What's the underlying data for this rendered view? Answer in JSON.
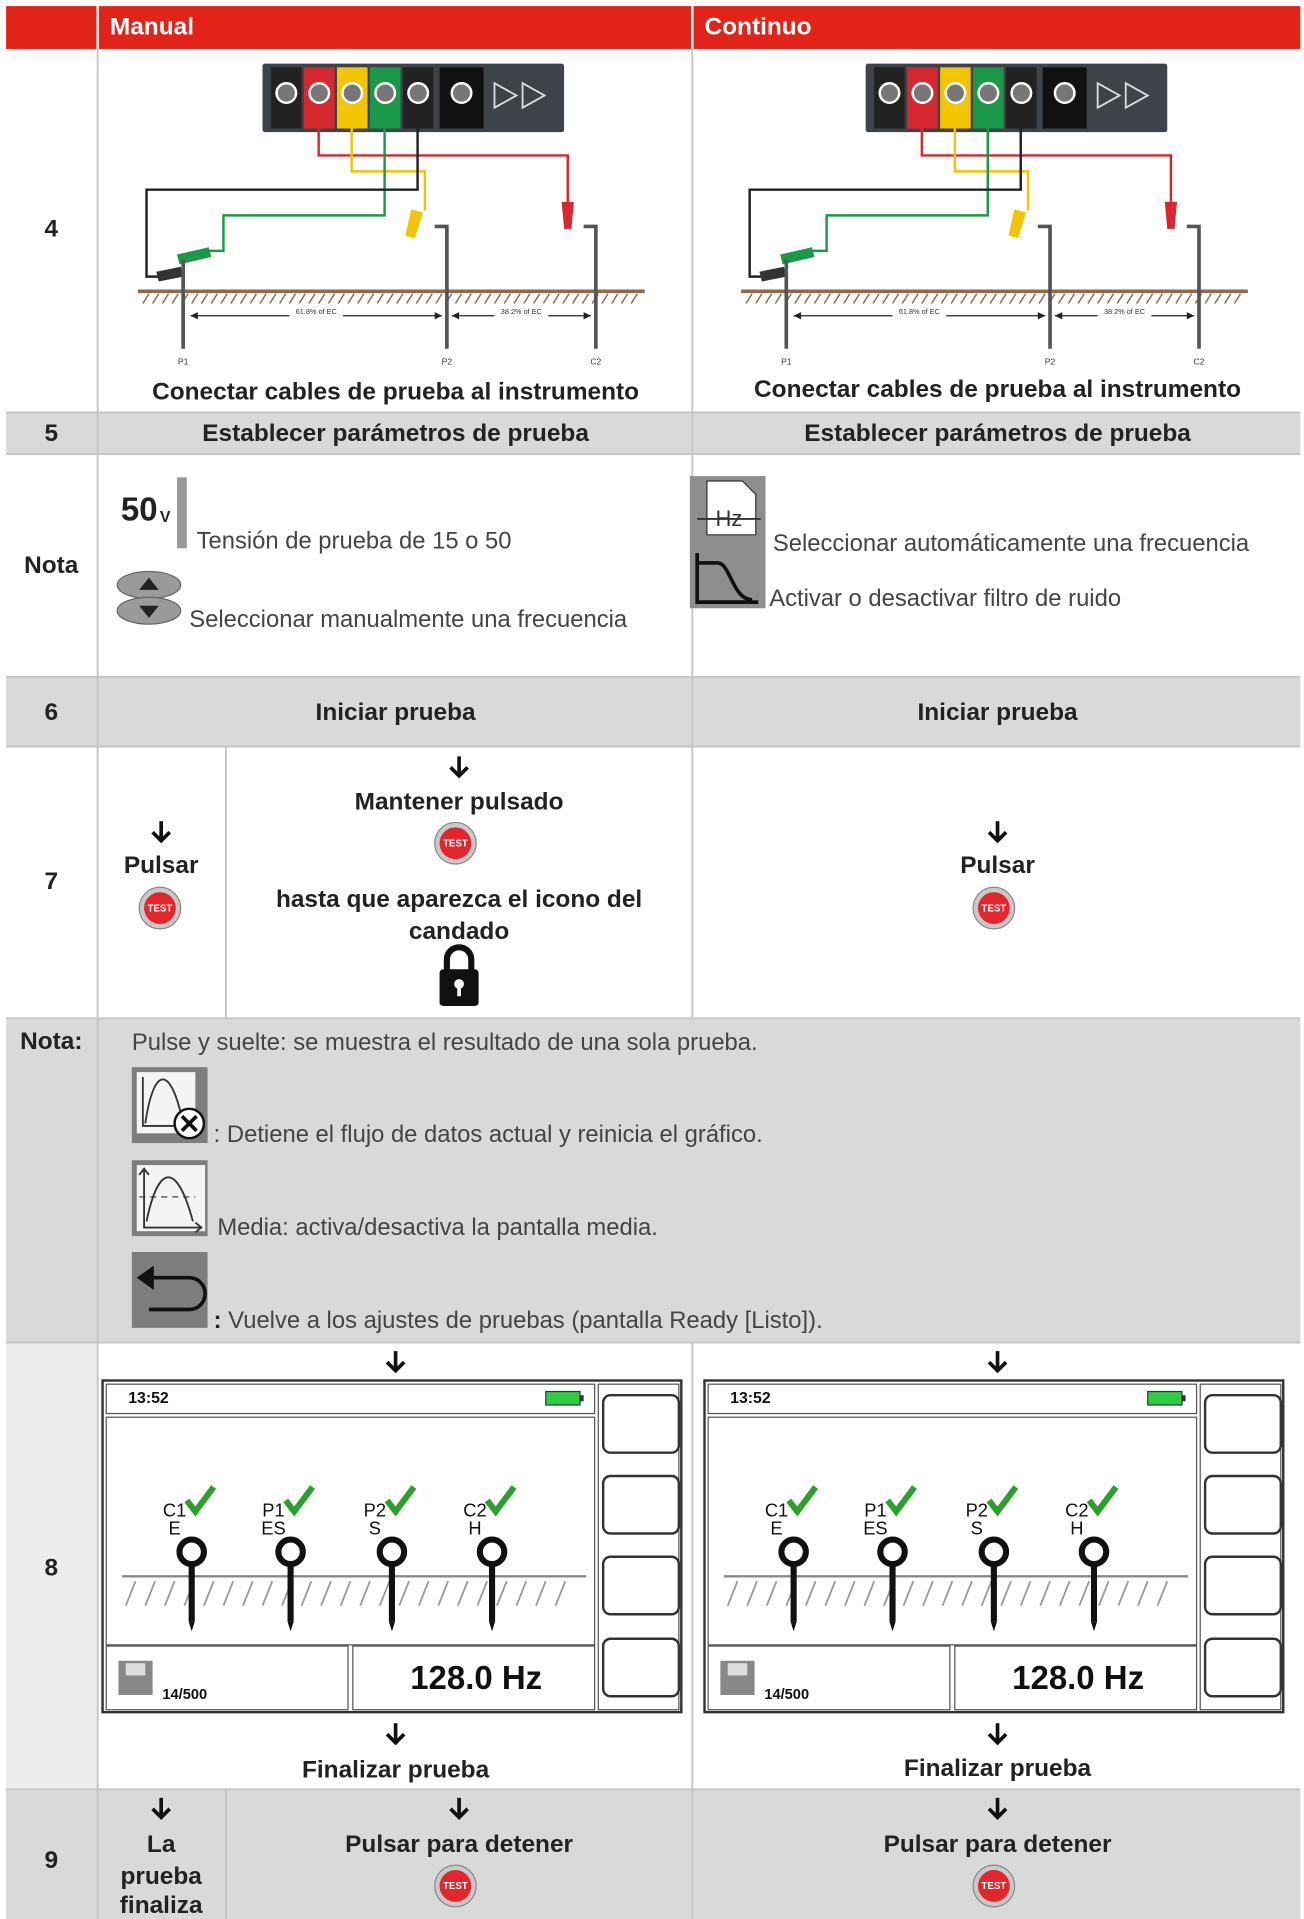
{
  "header": {
    "manual": "Manual",
    "continuo": "Continuo"
  },
  "diagram": {
    "distances": [
      "61.8% of EC",
      "38.2% of EC"
    ],
    "stakes": [
      "P1",
      "P2",
      "C2"
    ]
  },
  "test_button": "TEST",
  "screen": {
    "time": "13:52",
    "stakes": [
      [
        "C1",
        "E"
      ],
      [
        "P1",
        "ES"
      ],
      [
        "P2",
        "S"
      ],
      [
        "C2",
        "H"
      ]
    ],
    "memory": "14/500",
    "frequency": "128.0 Hz"
  },
  "rows": {
    "connect": {
      "number": "4",
      "manual": "Conectar cables de prueba al instrumento",
      "continuo": "Conectar cables de prueba al instrumento"
    },
    "params": {
      "number": "5",
      "manual": "Establecer parámetros de prueba",
      "continuo": "Establecer parámetros de prueba"
    },
    "note1": {
      "label": "Nota",
      "voltage": "50",
      "voltage_unit": "V",
      "voltage_text": "Tensión de prueba de 15 o 50",
      "manual_freq": "Seleccionar manualmente una frecuencia",
      "hz_icon": "Hz",
      "auto_freq": "Seleccionar automáticamente una frecuencia",
      "filter": "Activar o desactivar filtro de ruido"
    },
    "start": {
      "number": "6",
      "manual": "Iniciar prueba",
      "continuo": "Iniciar prueba"
    },
    "press": {
      "number": "7",
      "manual_press": "Pulsar",
      "manual_hold": "Mantener pulsado",
      "manual_until": [
        "hasta que aparezca el icono del",
        "candado"
      ],
      "continuo_press": "Pulsar"
    },
    "note2": {
      "label": "Nota:",
      "single": "Pulse y suelte: se muestra el resultado de una sola prueba.",
      "stop_stream": ": Detiene el flujo de datos actual y reinicia el gráfico.",
      "average": "Media: activa/desactiva la pantalla media.",
      "back_colon": ":",
      "back": " Vuelve a los ajustes de pruebas (pantalla Ready [Listo])."
    },
    "result": {
      "number": "8",
      "manual_end": "Finalizar prueba",
      "continuo_end": "Finalizar prueba"
    },
    "stop": {
      "number": "9",
      "manual_end": [
        "La",
        "prueba",
        "finaliza"
      ],
      "manual_stop": "Pulsar para detener",
      "continuo_stop": "Pulsar para detener"
    }
  }
}
